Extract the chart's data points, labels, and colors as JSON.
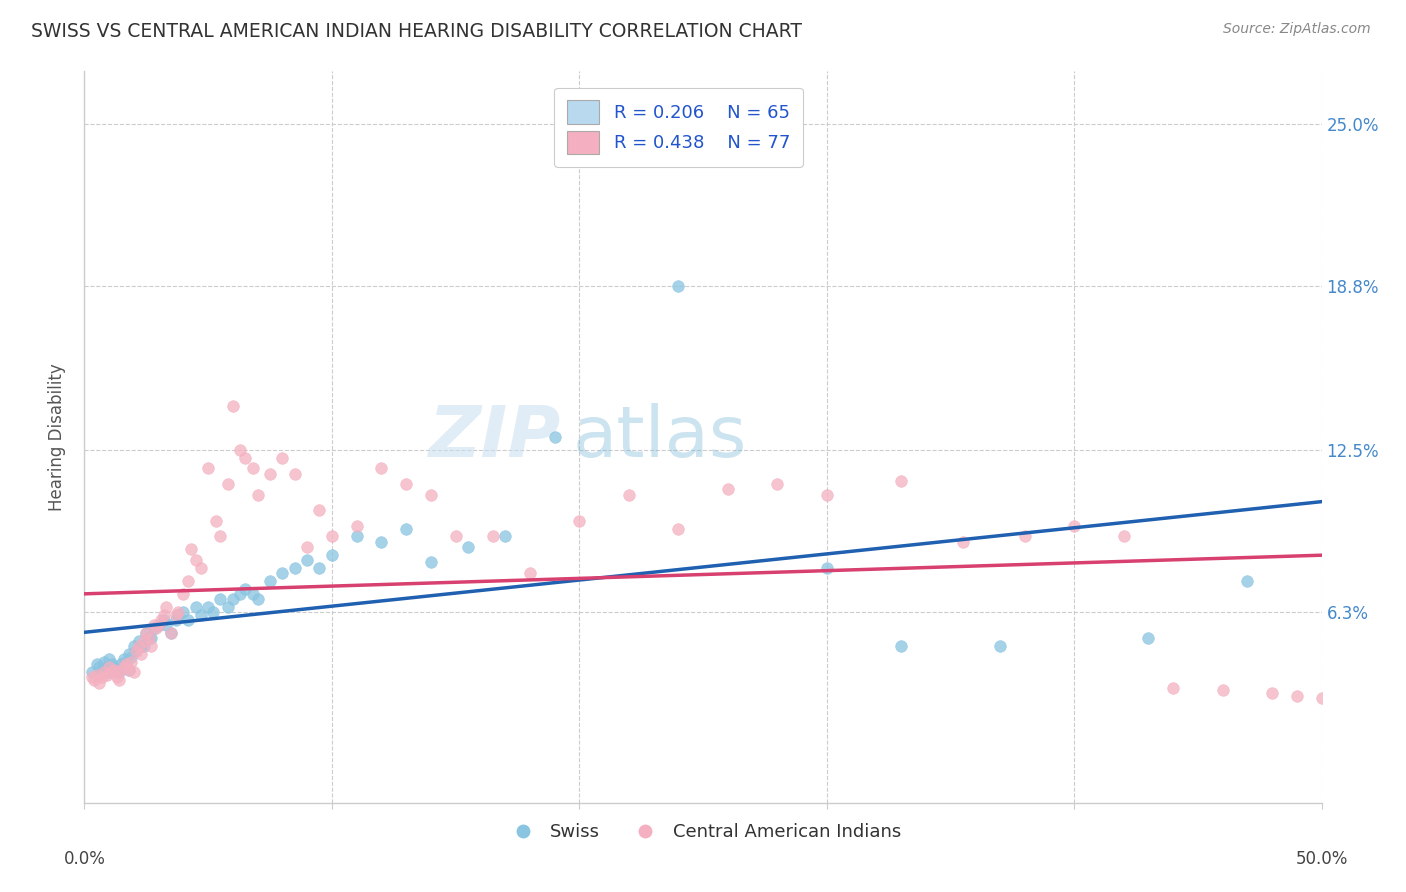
{
  "title": "SWISS VS CENTRAL AMERICAN INDIAN HEARING DISABILITY CORRELATION CHART",
  "source": "Source: ZipAtlas.com",
  "ylabel": "Hearing Disability",
  "ytick_labels": [
    "25.0%",
    "18.8%",
    "12.5%",
    "6.3%"
  ],
  "ytick_values": [
    0.25,
    0.188,
    0.125,
    0.063
  ],
  "xlim": [
    0.0,
    0.5
  ],
  "ylim": [
    -0.01,
    0.27
  ],
  "swiss_color": "#89c4e1",
  "swiss_color_light": "#b8d9ee",
  "central_color": "#f4b0c0",
  "line_swiss": "#2060b0",
  "line_central": "#d84070",
  "background_color": "#ffffff",
  "grid_color": "#cccccc",
  "swiss_points_x": [
    0.003,
    0.005,
    0.006,
    0.007,
    0.008,
    0.009,
    0.01,
    0.01,
    0.011,
    0.012,
    0.013,
    0.014,
    0.015,
    0.016,
    0.017,
    0.018,
    0.018,
    0.019,
    0.02,
    0.021,
    0.022,
    0.023,
    0.024,
    0.025,
    0.026,
    0.027,
    0.028,
    0.03,
    0.032,
    0.033,
    0.035,
    0.037,
    0.038,
    0.04,
    0.042,
    0.045,
    0.047,
    0.05,
    0.052,
    0.055,
    0.058,
    0.06,
    0.063,
    0.065,
    0.068,
    0.07,
    0.075,
    0.08,
    0.085,
    0.09,
    0.095,
    0.1,
    0.11,
    0.12,
    0.13,
    0.14,
    0.155,
    0.17,
    0.19,
    0.24,
    0.3,
    0.33,
    0.37,
    0.43,
    0.47
  ],
  "swiss_points_y": [
    0.04,
    0.043,
    0.042,
    0.041,
    0.044,
    0.042,
    0.045,
    0.04,
    0.043,
    0.042,
    0.041,
    0.04,
    0.043,
    0.045,
    0.044,
    0.047,
    0.041,
    0.046,
    0.05,
    0.048,
    0.052,
    0.05,
    0.05,
    0.055,
    0.053,
    0.053,
    0.057,
    0.058,
    0.06,
    0.058,
    0.055,
    0.06,
    0.062,
    0.063,
    0.06,
    0.065,
    0.062,
    0.065,
    0.063,
    0.068,
    0.065,
    0.068,
    0.07,
    0.072,
    0.07,
    0.068,
    0.075,
    0.078,
    0.08,
    0.083,
    0.08,
    0.085,
    0.092,
    0.09,
    0.095,
    0.082,
    0.088,
    0.092,
    0.13,
    0.188,
    0.08,
    0.05,
    0.05,
    0.053,
    0.075
  ],
  "central_points_x": [
    0.003,
    0.004,
    0.005,
    0.006,
    0.007,
    0.008,
    0.009,
    0.01,
    0.011,
    0.012,
    0.013,
    0.014,
    0.015,
    0.016,
    0.017,
    0.018,
    0.019,
    0.02,
    0.021,
    0.022,
    0.023,
    0.024,
    0.025,
    0.026,
    0.027,
    0.028,
    0.029,
    0.03,
    0.031,
    0.032,
    0.033,
    0.035,
    0.037,
    0.038,
    0.04,
    0.042,
    0.043,
    0.045,
    0.047,
    0.05,
    0.053,
    0.055,
    0.058,
    0.06,
    0.063,
    0.065,
    0.068,
    0.07,
    0.075,
    0.08,
    0.085,
    0.09,
    0.095,
    0.1,
    0.11,
    0.12,
    0.13,
    0.14,
    0.15,
    0.165,
    0.18,
    0.2,
    0.22,
    0.24,
    0.26,
    0.28,
    0.3,
    0.33,
    0.355,
    0.38,
    0.4,
    0.42,
    0.44,
    0.46,
    0.48,
    0.49,
    0.5
  ],
  "central_points_y": [
    0.038,
    0.037,
    0.039,
    0.036,
    0.038,
    0.04,
    0.039,
    0.042,
    0.04,
    0.041,
    0.038,
    0.037,
    0.041,
    0.042,
    0.043,
    0.041,
    0.044,
    0.04,
    0.048,
    0.05,
    0.047,
    0.052,
    0.055,
    0.053,
    0.05,
    0.058,
    0.057,
    0.058,
    0.06,
    0.062,
    0.065,
    0.055,
    0.062,
    0.063,
    0.07,
    0.075,
    0.087,
    0.083,
    0.08,
    0.118,
    0.098,
    0.092,
    0.112,
    0.142,
    0.125,
    0.122,
    0.118,
    0.108,
    0.116,
    0.122,
    0.116,
    0.088,
    0.102,
    0.092,
    0.096,
    0.118,
    0.112,
    0.108,
    0.092,
    0.092,
    0.078,
    0.098,
    0.108,
    0.095,
    0.11,
    0.112,
    0.108,
    0.113,
    0.09,
    0.092,
    0.096,
    0.092,
    0.034,
    0.033,
    0.032,
    0.031,
    0.03
  ]
}
